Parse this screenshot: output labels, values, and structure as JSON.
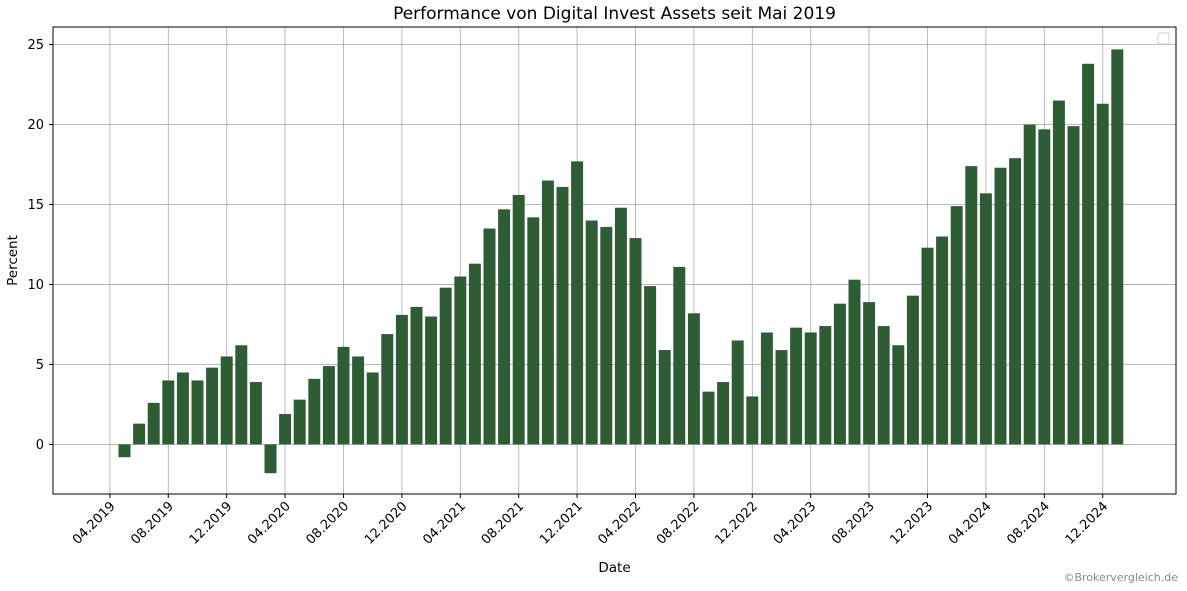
{
  "chart_data": {
    "type": "bar",
    "title": "Performance von Digital Invest Assets seit Mai 2019",
    "xlabel": "Date",
    "ylabel": "Percent",
    "ylim": [
      -3.1,
      26.1
    ],
    "yticks": [
      0,
      5,
      10,
      15,
      20,
      25
    ],
    "grid": true,
    "x_start": "2019-05",
    "x_tick_labels": [
      "04.2019",
      "08.2019",
      "12.2019",
      "04.2020",
      "08.2020",
      "12.2020",
      "04.2021",
      "08.2021",
      "12.2021",
      "04.2022",
      "08.2022",
      "12.2022",
      "04.2023",
      "08.2023",
      "12.2023",
      "04.2024",
      "08.2024",
      "12.2024"
    ],
    "values": [
      -0.8,
      1.3,
      2.6,
      4.0,
      4.5,
      4.0,
      4.8,
      5.5,
      6.2,
      3.9,
      -1.8,
      1.9,
      2.8,
      4.1,
      4.9,
      6.1,
      5.5,
      4.5,
      6.9,
      8.1,
      8.6,
      8.0,
      9.8,
      10.5,
      11.3,
      13.5,
      14.7,
      15.6,
      14.2,
      16.5,
      16.1,
      17.7,
      14.0,
      13.6,
      14.8,
      12.9,
      9.9,
      5.9,
      11.1,
      8.2,
      3.3,
      3.9,
      6.5,
      3.0,
      7.0,
      5.9,
      7.3,
      7.0,
      7.4,
      8.8,
      10.3,
      8.9,
      7.4,
      6.2,
      9.3,
      12.3,
      13.0,
      14.9,
      17.4,
      15.7,
      17.3,
      17.9,
      20.0,
      19.7,
      21.5,
      19.9,
      23.8,
      21.3,
      24.7
    ],
    "bar_color": "#2e5c35",
    "legend_position": "top-right"
  },
  "watermark": "©Brokervergleich.de"
}
